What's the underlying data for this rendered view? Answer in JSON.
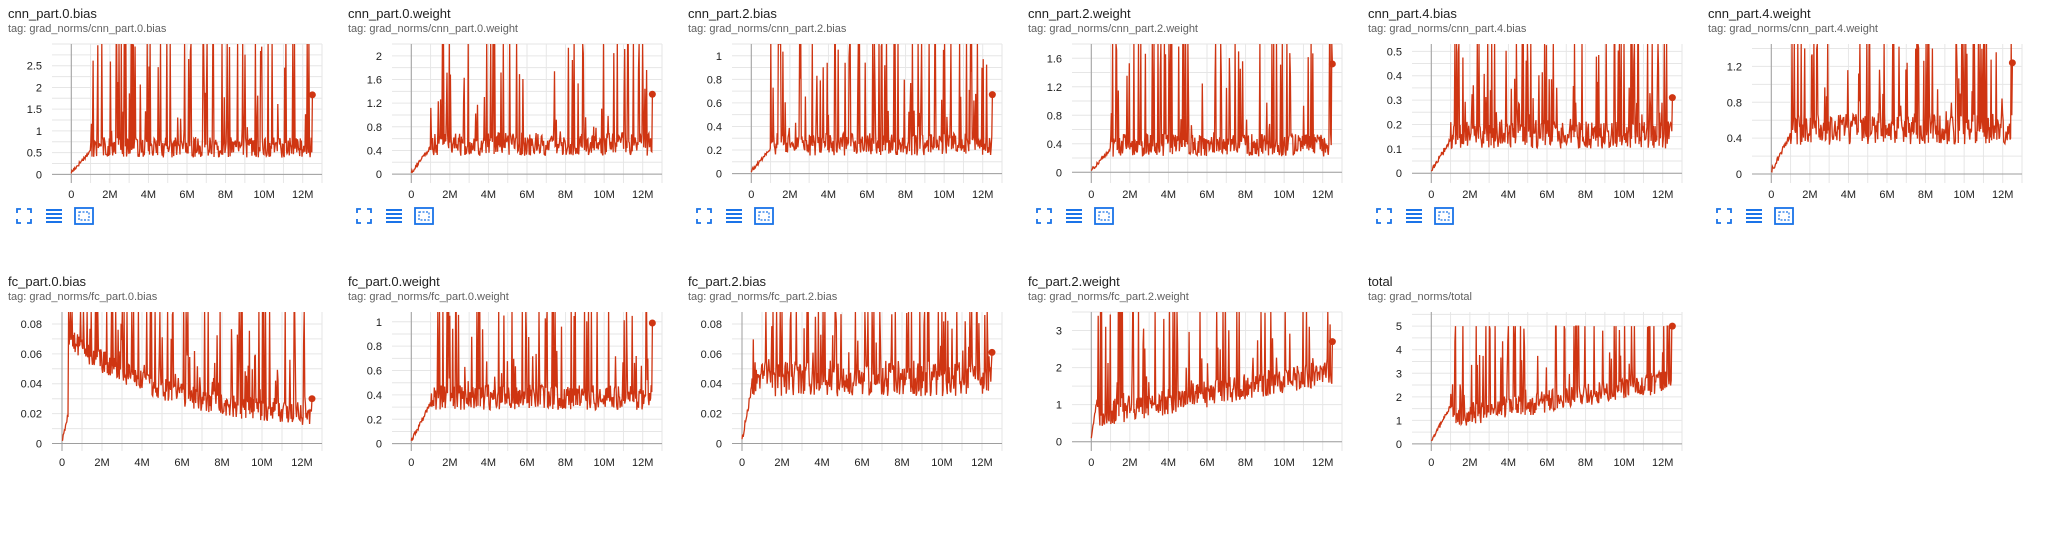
{
  "accent_color": "#cf3512",
  "toolbar_icons": [
    "fullscreen-icon",
    "data-table-icon",
    "fit-domain-icon"
  ],
  "charts": [
    {
      "title": "cnn_part.0.bias",
      "tag": "tag: grad_norms/cnn_part.0.bias",
      "chart_data": {
        "type": "line",
        "xlabel": "",
        "ylabel": "",
        "xlim": [
          -1000000,
          13000000
        ],
        "ylim": [
          -0.2,
          3.0
        ],
        "xticks": [
          0,
          2000000,
          4000000,
          6000000,
          8000000,
          10000000,
          12000000
        ],
        "xtick_labels": [
          "0",
          "2M",
          "4M",
          "6M",
          "8M",
          "10M",
          "12M"
        ],
        "yticks": [
          0,
          0.5,
          1,
          1.5,
          2,
          2.5
        ],
        "ytick_labels": [
          "0",
          "0.5",
          "1",
          "1.5",
          "2",
          "2.5"
        ],
        "x_end": 12500000,
        "last_value": 1.83,
        "warmup_end": 1000000,
        "baseline": 0.55,
        "noise": 0.3,
        "spike_max": 3.0,
        "series": [
          {
            "values": []
          }
        ]
      }
    },
    {
      "title": "cnn_part.0.weight",
      "tag": "tag: grad_norms/cnn_part.0.weight",
      "chart_data": {
        "type": "line",
        "xlabel": "",
        "ylabel": "",
        "xlim": [
          -1000000,
          13000000
        ],
        "ylim": [
          -0.15,
          2.2
        ],
        "xticks": [
          0,
          2000000,
          4000000,
          6000000,
          8000000,
          10000000,
          12000000
        ],
        "xtick_labels": [
          "0",
          "2M",
          "4M",
          "6M",
          "8M",
          "10M",
          "12M"
        ],
        "yticks": [
          0,
          0.4,
          0.8,
          1.2,
          1.6,
          2
        ],
        "ytick_labels": [
          "0",
          "0.4",
          "0.8",
          "1.2",
          "1.6",
          "2"
        ],
        "x_end": 12500000,
        "last_value": 1.35,
        "warmup_end": 1000000,
        "baseline": 0.45,
        "noise": 0.25,
        "spike_max": 2.2,
        "series": [
          {
            "values": []
          }
        ]
      }
    },
    {
      "title": "cnn_part.2.bias",
      "tag": "tag: grad_norms/cnn_part.2.bias",
      "chart_data": {
        "type": "line",
        "xlabel": "",
        "ylabel": "",
        "xlim": [
          -1000000,
          13000000
        ],
        "ylim": [
          -0.08,
          1.1
        ],
        "xticks": [
          0,
          2000000,
          4000000,
          6000000,
          8000000,
          10000000,
          12000000
        ],
        "xtick_labels": [
          "0",
          "2M",
          "4M",
          "6M",
          "8M",
          "10M",
          "12M"
        ],
        "yticks": [
          0,
          0.2,
          0.4,
          0.6,
          0.8,
          1
        ],
        "ytick_labels": [
          "0",
          "0.2",
          "0.4",
          "0.6",
          "0.8",
          "1"
        ],
        "x_end": 12500000,
        "last_value": 0.67,
        "warmup_end": 1000000,
        "baseline": 0.22,
        "noise": 0.12,
        "spike_max": 1.1,
        "series": [
          {
            "values": []
          }
        ]
      }
    },
    {
      "title": "cnn_part.2.weight",
      "tag": "tag: grad_norms/cnn_part.2.weight",
      "chart_data": {
        "type": "line",
        "xlabel": "",
        "ylabel": "",
        "xlim": [
          -1000000,
          13000000
        ],
        "ylim": [
          -0.15,
          1.8
        ],
        "xticks": [
          0,
          2000000,
          4000000,
          6000000,
          8000000,
          10000000,
          12000000
        ],
        "xtick_labels": [
          "0",
          "2M",
          "4M",
          "6M",
          "8M",
          "10M",
          "12M"
        ],
        "yticks": [
          0,
          0.4,
          0.8,
          1.2,
          1.6
        ],
        "ytick_labels": [
          "0",
          "0.4",
          "0.8",
          "1.2",
          "1.6"
        ],
        "x_end": 12500000,
        "last_value": 1.52,
        "warmup_end": 1000000,
        "baseline": 0.33,
        "noise": 0.2,
        "spike_max": 1.8,
        "series": [
          {
            "values": []
          }
        ]
      }
    },
    {
      "title": "cnn_part.4.bias",
      "tag": "tag: grad_norms/cnn_part.4.bias",
      "chart_data": {
        "type": "line",
        "xlabel": "",
        "ylabel": "",
        "xlim": [
          -1000000,
          13000000
        ],
        "ylim": [
          -0.04,
          0.53
        ],
        "xticks": [
          0,
          2000000,
          4000000,
          6000000,
          8000000,
          10000000,
          12000000
        ],
        "xtick_labels": [
          "0",
          "2M",
          "4M",
          "6M",
          "8M",
          "10M",
          "12M"
        ],
        "yticks": [
          0,
          0.1,
          0.2,
          0.3,
          0.4,
          0.5
        ],
        "ytick_labels": [
          "0",
          "0.1",
          "0.2",
          "0.3",
          "0.4",
          "0.5"
        ],
        "x_end": 12500000,
        "last_value": 0.31,
        "warmup_end": 1000000,
        "baseline": 0.14,
        "noise": 0.07,
        "spike_max": 0.53,
        "series": [
          {
            "values": []
          }
        ]
      }
    },
    {
      "title": "cnn_part.4.weight",
      "tag": "tag: grad_norms/cnn_part.4.weight",
      "chart_data": {
        "type": "line",
        "xlabel": "",
        "ylabel": "",
        "xlim": [
          -1000000,
          13000000
        ],
        "ylim": [
          -0.1,
          1.45
        ],
        "xticks": [
          0,
          2000000,
          4000000,
          6000000,
          8000000,
          10000000,
          12000000
        ],
        "xtick_labels": [
          "0",
          "2M",
          "4M",
          "6M",
          "8M",
          "10M",
          "12M"
        ],
        "yticks": [
          0,
          0.4,
          0.8,
          1.2
        ],
        "ytick_labels": [
          "0",
          "0.4",
          "0.8",
          "1.2"
        ],
        "x_end": 12500000,
        "last_value": 1.24,
        "warmup_end": 1000000,
        "baseline": 0.45,
        "noise": 0.22,
        "spike_max": 1.45,
        "series": [
          {
            "values": []
          }
        ]
      }
    },
    {
      "title": "fc_part.0.bias",
      "tag": "tag: grad_norms/fc_part.0.bias",
      "chart_data": {
        "type": "line",
        "xlabel": "",
        "ylabel": "",
        "xlim": [
          -500000,
          13000000
        ],
        "ylim": [
          -0.005,
          0.088
        ],
        "xticks": [
          0,
          2000000,
          4000000,
          6000000,
          8000000,
          10000000,
          12000000
        ],
        "xtick_labels": [
          "0",
          "2M",
          "4M",
          "6M",
          "8M",
          "10M",
          "12M"
        ],
        "yticks": [
          0,
          0.02,
          0.04,
          0.06,
          0.08
        ],
        "ytick_labels": [
          "0",
          "0.02",
          "0.04",
          "0.06",
          "0.08"
        ],
        "x_end": 12500000,
        "last_value": 0.03,
        "warmup_end": 300000,
        "baseline": 0.02,
        "noise": 0.012,
        "spike_max": 0.088,
        "series": [
          {
            "values": []
          }
        ]
      }
    },
    {
      "title": "fc_part.0.weight",
      "tag": "tag: grad_norms/fc_part.0.weight",
      "chart_data": {
        "type": "line",
        "xlabel": "",
        "ylabel": "",
        "xlim": [
          -1000000,
          13000000
        ],
        "ylim": [
          -0.06,
          1.08
        ],
        "xticks": [
          0,
          2000000,
          4000000,
          6000000,
          8000000,
          10000000,
          12000000
        ],
        "xtick_labels": [
          "0",
          "2M",
          "4M",
          "6M",
          "8M",
          "10M",
          "12M"
        ],
        "yticks": [
          0,
          0.2,
          0.4,
          0.6,
          0.8,
          1
        ],
        "ytick_labels": [
          "0",
          "0.2",
          "0.4",
          "0.6",
          "0.8",
          "1"
        ],
        "x_end": 12500000,
        "last_value": 0.99,
        "warmup_end": 1000000,
        "baseline": 0.35,
        "noise": 0.13,
        "spike_max": 1.08,
        "series": [
          {
            "values": []
          }
        ]
      }
    },
    {
      "title": "fc_part.2.bias",
      "tag": "tag: grad_norms/fc_part.2.bias",
      "chart_data": {
        "type": "line",
        "xlabel": "",
        "ylabel": "",
        "xlim": [
          -500000,
          13000000
        ],
        "ylim": [
          -0.005,
          0.088
        ],
        "xticks": [
          0,
          2000000,
          4000000,
          6000000,
          8000000,
          10000000,
          12000000
        ],
        "xtick_labels": [
          "0",
          "2M",
          "4M",
          "6M",
          "8M",
          "10M",
          "12M"
        ],
        "yticks": [
          0,
          0.02,
          0.04,
          0.06,
          0.08
        ],
        "ytick_labels": [
          "0",
          "0.02",
          "0.04",
          "0.06",
          "0.08"
        ],
        "x_end": 12500000,
        "last_value": 0.061,
        "warmup_end": 500000,
        "baseline": 0.04,
        "noise": 0.015,
        "spike_max": 0.088,
        "series": [
          {
            "values": []
          }
        ]
      }
    },
    {
      "title": "fc_part.2.weight",
      "tag": "tag: grad_norms/fc_part.2.weight",
      "chart_data": {
        "type": "line",
        "xlabel": "",
        "ylabel": "",
        "xlim": [
          -1000000,
          13000000
        ],
        "ylim": [
          -0.25,
          3.5
        ],
        "xticks": [
          0,
          2000000,
          4000000,
          6000000,
          8000000,
          10000000,
          12000000
        ],
        "xtick_labels": [
          "0",
          "2M",
          "4M",
          "6M",
          "8M",
          "10M",
          "12M"
        ],
        "yticks": [
          0,
          1,
          2,
          3
        ],
        "ytick_labels": [
          "0",
          "1",
          "2",
          "3"
        ],
        "x_end": 12500000,
        "last_value": 2.7,
        "warmup_end": 300000,
        "baseline": 1.2,
        "noise": 0.45,
        "spike_max": 3.5,
        "series": [
          {
            "values": []
          }
        ]
      }
    },
    {
      "title": "total",
      "tag": "tag: grad_norms/total",
      "chart_data": {
        "type": "line",
        "xlabel": "",
        "ylabel": "",
        "xlim": [
          -1000000,
          13000000
        ],
        "ylim": [
          -0.3,
          5.6
        ],
        "xticks": [
          0,
          2000000,
          4000000,
          6000000,
          8000000,
          10000000,
          12000000
        ],
        "xtick_labels": [
          "0",
          "2M",
          "4M",
          "6M",
          "8M",
          "10M",
          "12M"
        ],
        "yticks": [
          0,
          1,
          2,
          3,
          4,
          5
        ],
        "ytick_labels": [
          "0",
          "1",
          "2",
          "3",
          "4",
          "5"
        ],
        "x_end": 12500000,
        "last_value": 5.0,
        "warmup_end": 1000000,
        "baseline": 1.7,
        "noise": 0.6,
        "spike_max": 5.0,
        "series": [
          {
            "values": []
          }
        ]
      }
    }
  ]
}
